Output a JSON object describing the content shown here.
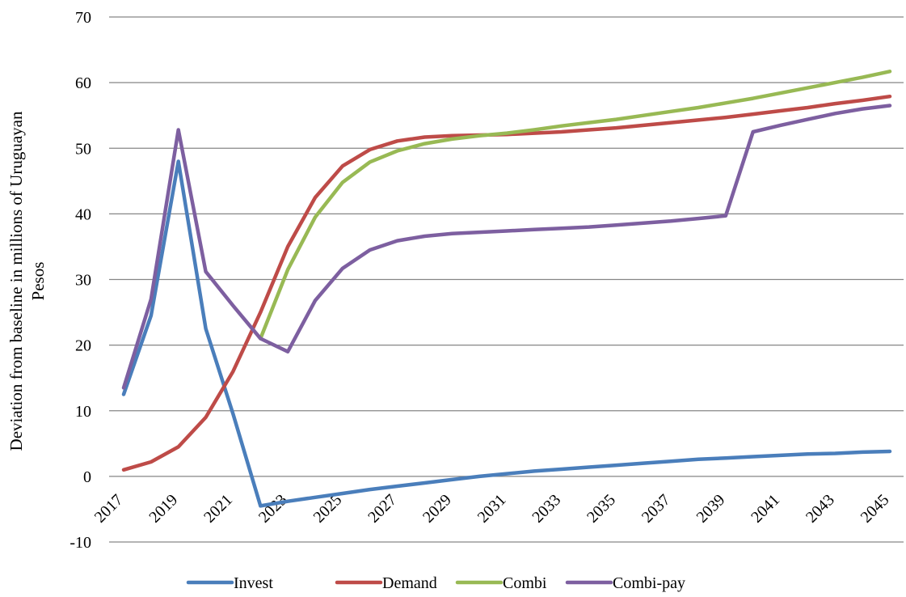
{
  "chart_data": {
    "type": "line",
    "title": "",
    "xlabel": "",
    "ylabel_lines": [
      "Deviation from baseline in millions of Uruguayan",
      "Pesos"
    ],
    "ylim": [
      -10,
      70
    ],
    "yticks": [
      -10,
      0,
      10,
      20,
      30,
      40,
      50,
      60,
      70
    ],
    "x": [
      2017,
      2018,
      2019,
      2020,
      2021,
      2022,
      2023,
      2024,
      2025,
      2026,
      2027,
      2028,
      2029,
      2030,
      2031,
      2032,
      2033,
      2034,
      2035,
      2036,
      2037,
      2038,
      2039,
      2040,
      2041,
      2042,
      2043,
      2044,
      2045
    ],
    "xticks": [
      "2017",
      "2019",
      "2021",
      "2023",
      "2025",
      "2027",
      "2029",
      "2031",
      "2033",
      "2035",
      "2037",
      "2039",
      "2041",
      "2043",
      "2045"
    ],
    "grid": true,
    "legend_position": "bottom",
    "series": [
      {
        "name": "Invest",
        "color": "#4a7ebb",
        "values": [
          12.5,
          24.5,
          48.0,
          22.5,
          9.5,
          -4.5,
          -3.8,
          -3.2,
          -2.6,
          -2.0,
          -1.5,
          -1.0,
          -0.5,
          0.0,
          0.4,
          0.8,
          1.1,
          1.4,
          1.7,
          2.0,
          2.3,
          2.6,
          2.8,
          3.0,
          3.2,
          3.4,
          3.5,
          3.7,
          3.8
        ]
      },
      {
        "name": "Demand",
        "color": "#be4b48",
        "values": [
          1.0,
          2.2,
          4.5,
          9.0,
          16.0,
          25.0,
          35.0,
          42.5,
          47.3,
          49.8,
          51.1,
          51.7,
          51.9,
          52.0,
          52.1,
          52.3,
          52.5,
          52.8,
          53.1,
          53.5,
          53.9,
          54.3,
          54.7,
          55.2,
          55.7,
          56.2,
          56.8,
          57.3,
          57.9
        ]
      },
      {
        "name": "Combi",
        "color": "#98b954",
        "values": [
          null,
          null,
          null,
          null,
          null,
          21.0,
          31.5,
          39.5,
          44.8,
          47.9,
          49.6,
          50.7,
          51.4,
          51.9,
          52.3,
          52.8,
          53.4,
          53.9,
          54.4,
          55.0,
          55.6,
          56.2,
          56.9,
          57.6,
          58.4,
          59.2,
          60.0,
          60.8,
          61.7
        ]
      },
      {
        "name": "Combi-pay",
        "color": "#7d5fa0",
        "values": [
          13.5,
          27.0,
          52.8,
          31.2,
          26.0,
          21.0,
          19.0,
          26.8,
          31.7,
          34.5,
          35.9,
          36.6,
          37.0,
          37.2,
          37.4,
          37.6,
          37.8,
          38.0,
          38.3,
          38.6,
          38.9,
          39.3,
          39.7,
          52.5,
          53.5,
          54.4,
          55.3,
          56.0,
          56.5
        ]
      }
    ]
  }
}
